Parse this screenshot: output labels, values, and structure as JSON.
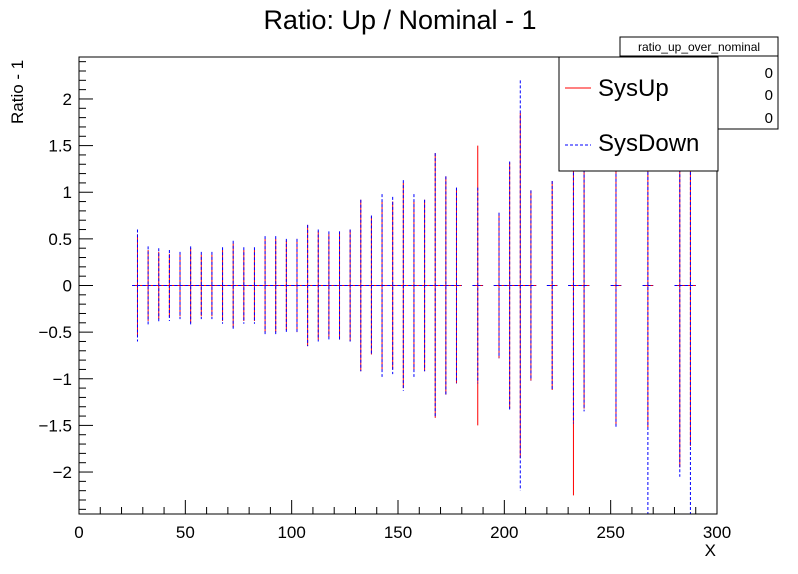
{
  "chart_data": {
    "type": "error-bar",
    "title": "Ratio: Up / Nominal - 1",
    "xlabel": "X",
    "ylabel": "Ratio - 1",
    "xlim": [
      0,
      300
    ],
    "ylim": [
      -2.45,
      2.45
    ],
    "x_ticks": [
      0,
      50,
      100,
      150,
      200,
      250,
      300
    ],
    "y_ticks": [
      -2,
      -1.5,
      -1,
      -0.5,
      0,
      0.5,
      1,
      1.5,
      2
    ],
    "y_tick_labels": [
      "−2",
      "−1.5",
      "−1",
      "−0.5",
      "0",
      "0.5",
      "1",
      "1.5",
      "2"
    ],
    "legend": {
      "position": "top-right",
      "entries": [
        "SysUp",
        "SysDown"
      ]
    },
    "stats_box": {
      "title": "ratio_up_over_nominal",
      "values": [
        "0",
        "0",
        "0"
      ]
    },
    "colors": {
      "SysUp": "#ff0000",
      "SysDown": "#0000ff"
    },
    "x_half_width": 2.5,
    "series": [
      {
        "name": "SysUp",
        "style": "solid",
        "points": [
          {
            "x": 27.5,
            "y": 0,
            "err": 0.55
          },
          {
            "x": 32.5,
            "y": 0,
            "err": 0.38
          },
          {
            "x": 37.5,
            "y": 0,
            "err": 0.36
          },
          {
            "x": 42.5,
            "y": 0,
            "err": 0.34
          },
          {
            "x": 47.5,
            "y": 0,
            "err": 0.33
          },
          {
            "x": 52.5,
            "y": 0,
            "err": 0.4
          },
          {
            "x": 57.5,
            "y": 0,
            "err": 0.33
          },
          {
            "x": 62.5,
            "y": 0,
            "err": 0.33
          },
          {
            "x": 67.5,
            "y": 0,
            "err": 0.38
          },
          {
            "x": 72.5,
            "y": 0,
            "err": 0.45
          },
          {
            "x": 77.5,
            "y": 0,
            "err": 0.38
          },
          {
            "x": 82.5,
            "y": 0,
            "err": 0.38
          },
          {
            "x": 87.5,
            "y": 0,
            "err": 0.5
          },
          {
            "x": 92.5,
            "y": 0,
            "err": 0.5
          },
          {
            "x": 97.5,
            "y": 0,
            "err": 0.48
          },
          {
            "x": 102.5,
            "y": 0,
            "err": 0.5
          },
          {
            "x": 107.5,
            "y": 0,
            "err": 0.65
          },
          {
            "x": 112.5,
            "y": 0,
            "err": 0.58
          },
          {
            "x": 117.5,
            "y": 0,
            "err": 0.55
          },
          {
            "x": 122.5,
            "y": 0,
            "err": 0.58
          },
          {
            "x": 127.5,
            "y": 0,
            "err": 0.6
          },
          {
            "x": 132.5,
            "y": 0,
            "err": 0.92
          },
          {
            "x": 137.5,
            "y": 0,
            "err": 0.74
          },
          {
            "x": 142.5,
            "y": 0,
            "err": 0.9
          },
          {
            "x": 147.5,
            "y": 0,
            "err": 0.9
          },
          {
            "x": 152.5,
            "y": 0,
            "err": 1.1
          },
          {
            "x": 157.5,
            "y": 0,
            "err": 0.9
          },
          {
            "x": 162.5,
            "y": 0,
            "err": 0.92
          },
          {
            "x": 167.5,
            "y": 0,
            "err": 1.42
          },
          {
            "x": 172.5,
            "y": 0,
            "err": 1.17
          },
          {
            "x": 177.5,
            "y": 0,
            "err": 1.05
          },
          {
            "x": 187.5,
            "y": 0,
            "err": 1.5
          },
          {
            "x": 197.5,
            "y": 0,
            "err": 0.78
          },
          {
            "x": 202.5,
            "y": 0,
            "err": 1.32
          },
          {
            "x": 207.5,
            "y": 0,
            "err": 1.85
          },
          {
            "x": 212.5,
            "y": 0,
            "err": 1.02
          },
          {
            "x": 222.5,
            "y": 0,
            "err": 1.12
          },
          {
            "x": 232.5,
            "y": 0,
            "err": 2.25
          },
          {
            "x": 237.5,
            "y": 0,
            "err": 1.32
          },
          {
            "x": 252.5,
            "y": 0,
            "err": 1.5
          },
          {
            "x": 267.5,
            "y": 0,
            "err": 1.52
          },
          {
            "x": 282.5,
            "y": 0,
            "err": 1.95
          },
          {
            "x": 287.5,
            "y": 0,
            "err": 1.72
          }
        ]
      },
      {
        "name": "SysDown",
        "style": "dashed",
        "points": [
          {
            "x": 27.5,
            "y": 0,
            "err": 0.6
          },
          {
            "x": 32.5,
            "y": 0,
            "err": 0.42
          },
          {
            "x": 37.5,
            "y": 0,
            "err": 0.4
          },
          {
            "x": 42.5,
            "y": 0,
            "err": 0.38
          },
          {
            "x": 47.5,
            "y": 0,
            "err": 0.36
          },
          {
            "x": 52.5,
            "y": 0,
            "err": 0.42
          },
          {
            "x": 57.5,
            "y": 0,
            "err": 0.36
          },
          {
            "x": 62.5,
            "y": 0,
            "err": 0.36
          },
          {
            "x": 67.5,
            "y": 0,
            "err": 0.41
          },
          {
            "x": 72.5,
            "y": 0,
            "err": 0.48
          },
          {
            "x": 77.5,
            "y": 0,
            "err": 0.41
          },
          {
            "x": 82.5,
            "y": 0,
            "err": 0.41
          },
          {
            "x": 87.5,
            "y": 0,
            "err": 0.53
          },
          {
            "x": 92.5,
            "y": 0,
            "err": 0.53
          },
          {
            "x": 97.5,
            "y": 0,
            "err": 0.5
          },
          {
            "x": 102.5,
            "y": 0,
            "err": 0.5
          },
          {
            "x": 107.5,
            "y": 0,
            "err": 0.65
          },
          {
            "x": 112.5,
            "y": 0,
            "err": 0.6
          },
          {
            "x": 117.5,
            "y": 0,
            "err": 0.58
          },
          {
            "x": 122.5,
            "y": 0,
            "err": 0.58
          },
          {
            "x": 127.5,
            "y": 0,
            "err": 0.6
          },
          {
            "x": 132.5,
            "y": 0,
            "err": 0.92
          },
          {
            "x": 137.5,
            "y": 0,
            "err": 0.75
          },
          {
            "x": 142.5,
            "y": 0,
            "err": 0.98
          },
          {
            "x": 147.5,
            "y": 0,
            "err": 0.95
          },
          {
            "x": 152.5,
            "y": 0,
            "err": 1.13
          },
          {
            "x": 157.5,
            "y": 0,
            "err": 0.98
          },
          {
            "x": 162.5,
            "y": 0,
            "err": 0.92
          },
          {
            "x": 167.5,
            "y": 0,
            "err": 1.42
          },
          {
            "x": 172.5,
            "y": 0,
            "err": 1.17
          },
          {
            "x": 177.5,
            "y": 0,
            "err": 1.05
          },
          {
            "x": 187.5,
            "y": 0,
            "err": 1.05
          },
          {
            "x": 197.5,
            "y": 0,
            "err": 0.78
          },
          {
            "x": 202.5,
            "y": 0,
            "err": 1.33
          },
          {
            "x": 207.5,
            "y": 0,
            "err": 2.2
          },
          {
            "x": 212.5,
            "y": 0,
            "err": 1.02
          },
          {
            "x": 222.5,
            "y": 0,
            "err": 1.12
          },
          {
            "x": 232.5,
            "y": 0,
            "err": 1.48
          },
          {
            "x": 237.5,
            "y": 0,
            "err": 1.35
          },
          {
            "x": 252.5,
            "y": 0,
            "err": 1.52
          },
          {
            "x": 267.5,
            "y": 0,
            "err": 2.45
          },
          {
            "x": 282.5,
            "y": 0,
            "err": 2.05
          },
          {
            "x": 287.5,
            "y": 0,
            "err": 2.45
          }
        ]
      }
    ]
  }
}
